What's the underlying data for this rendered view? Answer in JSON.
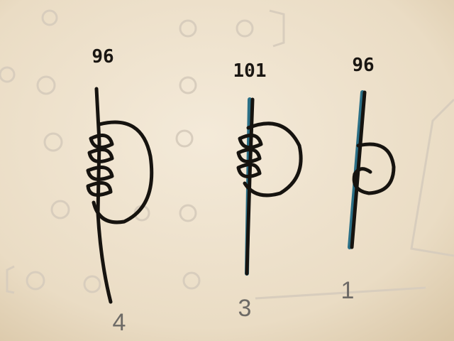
{
  "figures": [
    {
      "top": "96",
      "bottom": "4"
    },
    {
      "top": "101",
      "bottom": "3"
    },
    {
      "top": "96",
      "bottom": "1"
    }
  ]
}
